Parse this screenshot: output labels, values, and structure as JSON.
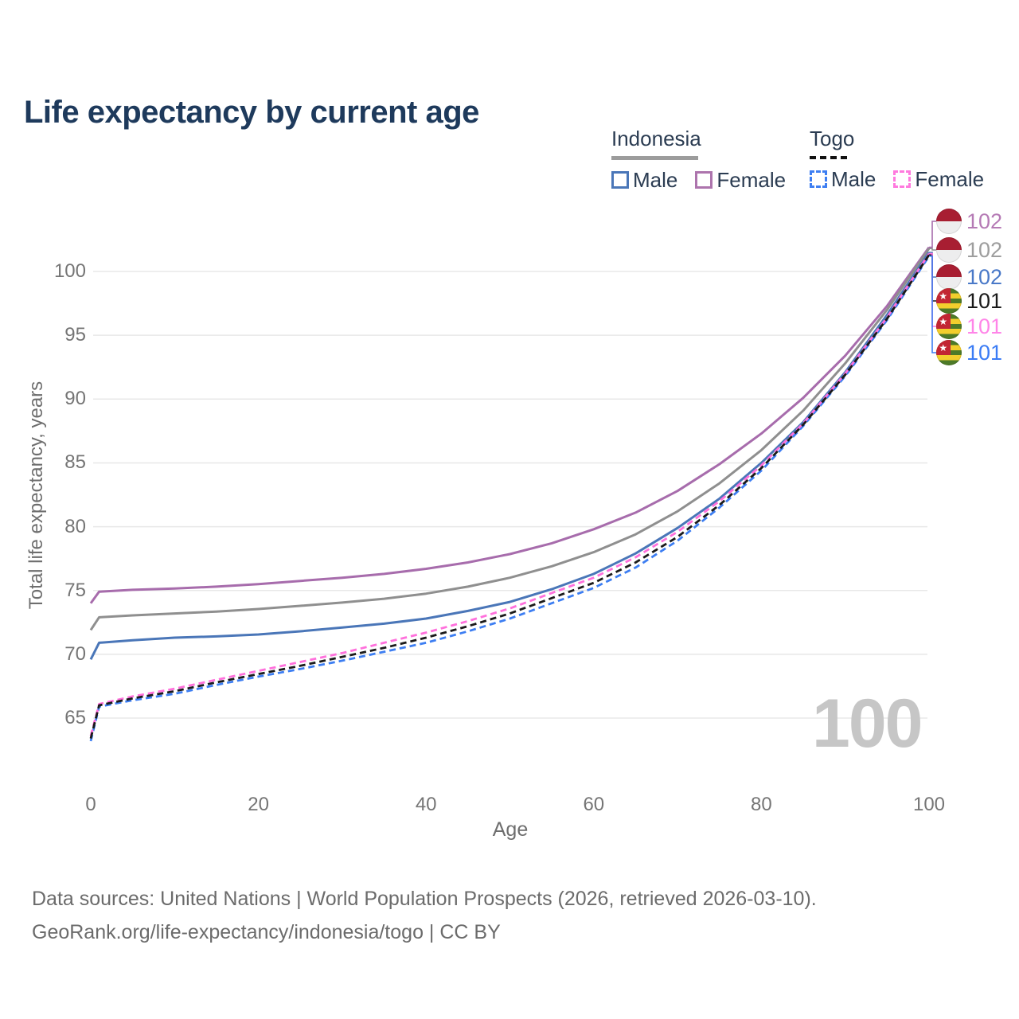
{
  "title": "Life expectancy by current age",
  "legend": {
    "groups": [
      {
        "label": "Indonesia",
        "underline": "solid-gray",
        "items": [
          {
            "label": "Male",
            "color": "#4a76b8",
            "dashed": false
          },
          {
            "label": "Female",
            "color": "#ad74ad",
            "dashed": false
          }
        ]
      },
      {
        "label": "Togo",
        "underline": "dashed-black",
        "items": [
          {
            "label": "Male",
            "color": "#3d7ef2",
            "dashed": true
          },
          {
            "label": "Female",
            "color": "#ff7ade",
            "dashed": true
          }
        ]
      }
    ]
  },
  "end_labels": [
    {
      "value": "102",
      "series": "indonesia_female",
      "label_color": "#b57ab5",
      "flag": "indonesia"
    },
    {
      "value": "102",
      "series": "indonesia_both",
      "label_color": "#9e9e9e",
      "flag": "indonesia"
    },
    {
      "value": "102",
      "series": "indonesia_male",
      "label_color": "#4a79c8",
      "flag": "indonesia"
    },
    {
      "value": "101",
      "series": "togo_both",
      "label_color": "#1a1a1a",
      "flag": "togo"
    },
    {
      "value": "101",
      "series": "togo_female",
      "label_color": "#ff85e8",
      "flag": "togo"
    },
    {
      "value": "101",
      "series": "togo_male",
      "label_color": "#3b7cf5",
      "flag": "togo"
    }
  ],
  "watermark": "100",
  "footer": {
    "line1": "Data sources: United Nations | World Population Prospects (2026, retrieved 2026-03-10).",
    "line2": "GeoRank.org/life-expectancy/indonesia/togo | CC BY"
  },
  "chart_data": {
    "type": "line",
    "title": "Life expectancy by current age",
    "xlabel": "Age",
    "ylabel": "Total life expectancy, years",
    "xlim": [
      0,
      100
    ],
    "ylim": [
      63,
      102.5
    ],
    "xticks": [
      0,
      20,
      40,
      60,
      80,
      100
    ],
    "yticks": [
      65,
      70,
      75,
      80,
      85,
      90,
      95,
      100
    ],
    "grid": "horizontal",
    "legend_position": "top-right",
    "x": [
      0,
      1,
      5,
      10,
      15,
      20,
      25,
      30,
      35,
      40,
      45,
      50,
      55,
      60,
      65,
      70,
      75,
      80,
      85,
      90,
      95,
      100
    ],
    "series": [
      {
        "id": "indonesia_female",
        "name": "Indonesia Female",
        "color": "#a76cac",
        "dash": "solid",
        "values": [
          74.0,
          74.9,
          75.05,
          75.15,
          75.3,
          75.5,
          75.75,
          76.0,
          76.3,
          76.7,
          77.2,
          77.85,
          78.7,
          79.8,
          81.1,
          82.8,
          84.9,
          87.3,
          90.1,
          93.4,
          97.3,
          101.9
        ]
      },
      {
        "id": "indonesia_both",
        "name": "Indonesia Both sexes",
        "color": "#8f8f8f",
        "dash": "solid",
        "values": [
          71.9,
          72.9,
          73.05,
          73.2,
          73.35,
          73.55,
          73.8,
          74.05,
          74.35,
          74.75,
          75.3,
          76.0,
          76.9,
          78.0,
          79.4,
          81.2,
          83.4,
          86.0,
          89.1,
          92.8,
          97.0,
          101.8
        ]
      },
      {
        "id": "indonesia_male",
        "name": "Indonesia Male",
        "color": "#4a76b8",
        "dash": "solid",
        "values": [
          69.6,
          70.9,
          71.1,
          71.3,
          71.4,
          71.55,
          71.8,
          72.1,
          72.4,
          72.8,
          73.4,
          74.1,
          75.1,
          76.3,
          77.9,
          79.9,
          82.2,
          85.0,
          88.2,
          92.1,
          96.6,
          101.5
        ]
      },
      {
        "id": "togo_male",
        "name": "Togo Male",
        "color": "#3d7ef2",
        "dash": "dashed",
        "values": [
          63.2,
          65.9,
          66.4,
          66.9,
          67.6,
          68.25,
          68.85,
          69.5,
          70.2,
          70.9,
          71.8,
          72.8,
          74.0,
          75.2,
          76.8,
          78.9,
          81.5,
          84.4,
          87.9,
          91.8,
          96.2,
          101.2
        ]
      },
      {
        "id": "togo_female",
        "name": "Togo Female",
        "color": "#ff70dc",
        "dash": "dashed",
        "values": [
          63.6,
          66.1,
          66.7,
          67.3,
          68.0,
          68.7,
          69.4,
          70.1,
          70.9,
          71.7,
          72.6,
          73.6,
          74.8,
          76.0,
          77.6,
          79.6,
          82.0,
          84.8,
          88.1,
          92.0,
          96.4,
          101.4
        ]
      },
      {
        "id": "togo_both",
        "name": "Togo Both sexes",
        "color": "#1a1a1a",
        "dash": "dashed",
        "values": [
          63.4,
          66.0,
          66.55,
          67.1,
          67.8,
          68.45,
          69.1,
          69.8,
          70.5,
          71.3,
          72.2,
          73.2,
          74.4,
          75.6,
          77.2,
          79.2,
          81.7,
          84.6,
          88.0,
          91.9,
          96.3,
          101.3
        ]
      }
    ]
  }
}
